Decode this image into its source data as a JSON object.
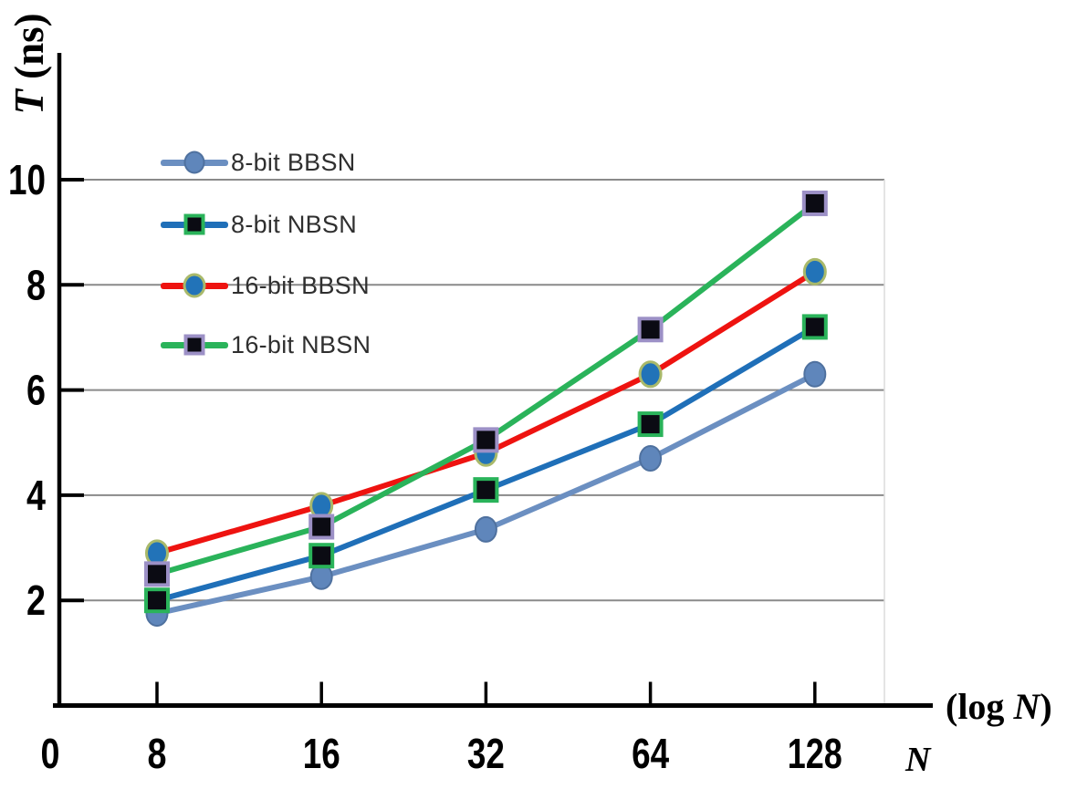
{
  "figure": {
    "background": "#ffffff",
    "ylabel_parts": {
      "var": "T",
      "unit": " (ns)"
    },
    "xlabel_right_parts": {
      "pre": "(log ",
      "var": "N",
      "post": ")"
    },
    "xlabel_below": "N",
    "origin_label": "0"
  },
  "chart_data": {
    "type": "line",
    "title": "",
    "xlabel": "N  (log N)",
    "ylabel": "T (ns)",
    "categories": [
      8,
      16,
      32,
      64,
      128
    ],
    "x_tick_labels": [
      "8",
      "16",
      "32",
      "64",
      "128"
    ],
    "x_origin_label": "0",
    "y_ticks": [
      2,
      4,
      6,
      8,
      10
    ],
    "y_tick_labels": [
      "2",
      "4",
      "6",
      "8",
      "10"
    ],
    "ylim": [
      0,
      12.4
    ],
    "grid": "horizontal-major",
    "grid_color": "#8a8a8a",
    "axis_color": "#000000",
    "plot_right_edge_color": "#dcdcdc",
    "legend_position": "upper-left-inside",
    "series": [
      {
        "name": "8-bit BBSN",
        "values": [
          1.75,
          2.45,
          3.35,
          4.7,
          6.3
        ],
        "line_color": "#6b8fc1",
        "marker": "circle",
        "marker_fill": "#5f86bb",
        "marker_edge": "#4f719f",
        "marker_edge_width": 2
      },
      {
        "name": "8-bit NBSN",
        "values": [
          2.0,
          2.85,
          4.1,
          5.35,
          7.2
        ],
        "line_color": "#1f6fb8",
        "marker": "square",
        "marker_fill": "#0b0b13",
        "marker_edge": "#2ab35a",
        "marker_edge_width": 4
      },
      {
        "name": "16-bit BBSN",
        "values": [
          2.9,
          3.8,
          4.8,
          6.3,
          8.25
        ],
        "line_color": "#ee1310",
        "marker": "circle",
        "marker_fill": "#2273b8",
        "marker_edge": "#a9b96a",
        "marker_edge_width": 3
      },
      {
        "name": "16-bit NBSN",
        "values": [
          2.5,
          3.4,
          5.05,
          7.15,
          9.55
        ],
        "line_color": "#2ab35a",
        "marker": "square",
        "marker_fill": "#0b0b13",
        "marker_edge": "#9c90c6",
        "marker_edge_width": 4
      }
    ]
  }
}
